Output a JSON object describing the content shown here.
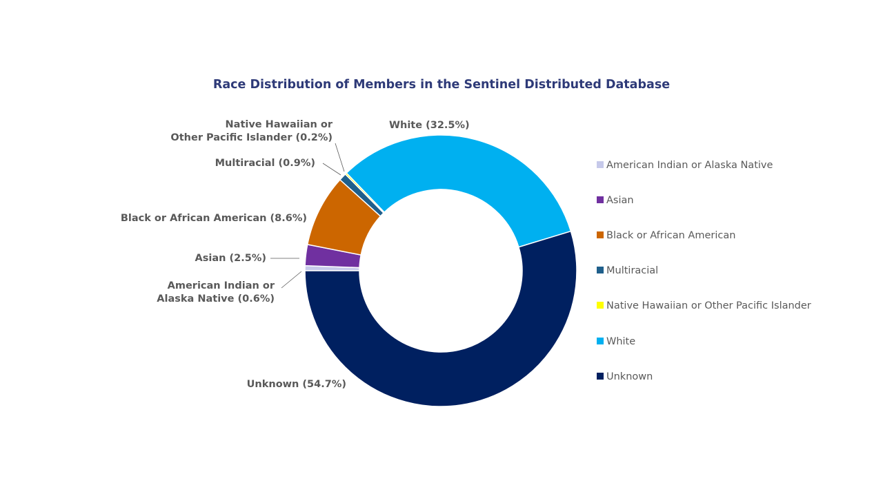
{
  "chart_data": {
    "type": "pie",
    "variant": "donut",
    "title": "Race Distribution of Members in the Sentinel Distributed Database",
    "legend_placement": "right",
    "categories": [
      "American Indian or Alaska Native",
      "Asian",
      "Black or African American",
      "Multiracial",
      "Native Hawaiian or Other Pacific Islander",
      "White",
      "Unknown"
    ],
    "values": [
      0.6,
      2.5,
      8.6,
      0.9,
      0.2,
      32.5,
      54.7
    ],
    "unit": "%",
    "colors": [
      "#c6c9ea",
      "#7030a0",
      "#cc6600",
      "#1f5f8b",
      "#ffff00",
      "#00b0f0",
      "#002060"
    ],
    "data_labels": [
      [
        "American Indian or",
        "Alaska Native (0.6%)"
      ],
      [
        "Asian (2.5%)"
      ],
      [
        "Black or African American (8.6%)"
      ],
      [
        "Multiracial (0.9%)"
      ],
      [
        "Native Hawaiian or",
        "Other Pacific Islander (0.2%)"
      ],
      [
        "White (32.5%)"
      ],
      [
        "Unknown (54.7%)"
      ]
    ]
  }
}
